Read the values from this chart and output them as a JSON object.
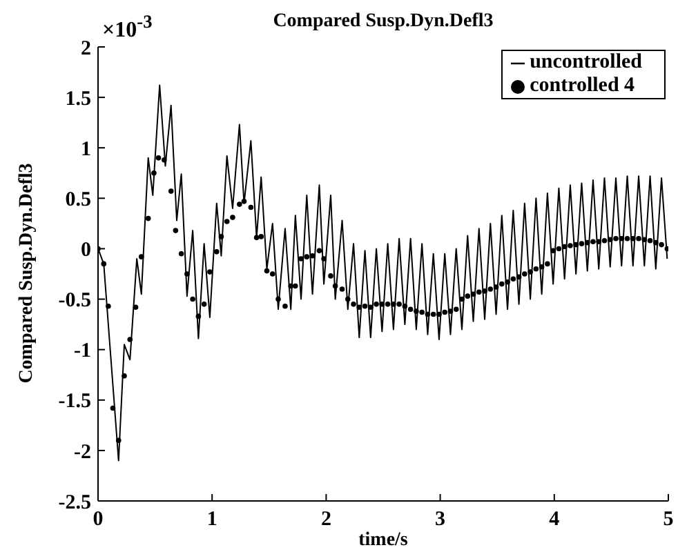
{
  "chart_data": {
    "type": "line",
    "title": "Compared Susp.Dyn.Defl3",
    "xlabel": "time/s",
    "ylabel": "Compared Susp.Dyn.Defl3",
    "annotations": [
      "×10$^{-3}$"
    ],
    "xlim": [
      0,
      5
    ],
    "xticks": [
      0,
      1,
      2,
      3,
      4,
      5
    ],
    "ylim": [
      -2.5,
      2
    ],
    "yticks": [
      -2.5,
      -2,
      -1.5,
      -1,
      -0.5,
      0,
      0.5,
      1,
      1.5,
      2
    ],
    "grid": false,
    "legend": "top right",
    "series": [
      {
        "name": "uncontrolled",
        "type": "line",
        "color": "#000000",
        "marker": "none",
        "line_style": "solid",
        "x": [
          0,
          0.05,
          0.18,
          0.23,
          0.28,
          0.34,
          0.38,
          0.44,
          0.48,
          0.54,
          0.59,
          0.64,
          0.69,
          0.73,
          0.78,
          0.83,
          0.88,
          0.93,
          0.98,
          1.04,
          1.08,
          1.13,
          1.18,
          1.24,
          1.28,
          1.34,
          1.39,
          1.43,
          1.48,
          1.53,
          1.58,
          1.64,
          1.69,
          1.73,
          1.78,
          1.83,
          1.88,
          1.94,
          1.98,
          2.04,
          2.08,
          2.14,
          2.19,
          2.24,
          2.29,
          2.34,
          2.39,
          2.44,
          2.49,
          2.54,
          2.59,
          2.64,
          2.69,
          2.74,
          2.79,
          2.84,
          2.89,
          2.94,
          2.99,
          3.04,
          3.09,
          3.14,
          3.19,
          3.24,
          3.29,
          3.34,
          3.39,
          3.44,
          3.49,
          3.54,
          3.59,
          3.64,
          3.69,
          3.74,
          3.79,
          3.84,
          3.89,
          3.94,
          3.99,
          4.04,
          4.09,
          4.14,
          4.19,
          4.24,
          4.29,
          4.34,
          4.39,
          4.44,
          4.49,
          4.54,
          4.59,
          4.64,
          4.69,
          4.74,
          4.79,
          4.84,
          4.89,
          4.94,
          4.99
        ],
        "values": [
          0,
          -0.15,
          -2.1,
          -0.95,
          -1.1,
          -0.1,
          -0.45,
          0.9,
          0.53,
          1.62,
          0.82,
          1.42,
          0.28,
          0.74,
          -0.47,
          0.18,
          -0.89,
          0.05,
          -0.68,
          0.45,
          -0.07,
          0.92,
          0.4,
          1.23,
          0.45,
          1.07,
          0.11,
          0.71,
          -0.2,
          0.25,
          -0.6,
          0.2,
          -0.6,
          0.33,
          -0.5,
          0.53,
          -0.45,
          0.63,
          -0.35,
          0.53,
          -0.5,
          0.28,
          -0.6,
          0.05,
          -0.88,
          -0.02,
          -0.88,
          0,
          -0.82,
          0.05,
          -0.8,
          0.1,
          -0.75,
          0.1,
          -0.8,
          0.05,
          -0.85,
          -0.05,
          -0.9,
          -0.05,
          -0.85,
          0,
          -0.8,
          0.13,
          -0.72,
          0.2,
          -0.7,
          0.25,
          -0.65,
          0.33,
          -0.6,
          0.38,
          -0.55,
          0.45,
          -0.5,
          0.5,
          -0.45,
          0.55,
          -0.35,
          0.6,
          -0.3,
          0.63,
          -0.25,
          0.65,
          -0.22,
          0.68,
          -0.2,
          0.7,
          -0.18,
          0.7,
          -0.17,
          0.72,
          -0.17,
          0.72,
          -0.17,
          0.72,
          -0.2,
          0.7,
          -0.1
        ]
      },
      {
        "name": "controlled 4",
        "type": "scatter",
        "color": "#000000",
        "marker": "circle",
        "x": [
          0,
          0.05,
          0.09,
          0.13,
          0.18,
          0.23,
          0.28,
          0.33,
          0.38,
          0.44,
          0.49,
          0.53,
          0.58,
          0.64,
          0.68,
          0.73,
          0.78,
          0.83,
          0.88,
          0.93,
          0.98,
          1.04,
          1.08,
          1.13,
          1.18,
          1.24,
          1.28,
          1.34,
          1.39,
          1.43,
          1.48,
          1.53,
          1.58,
          1.64,
          1.69,
          1.73,
          1.78,
          1.83,
          1.88,
          1.94,
          1.98,
          2.04,
          2.08,
          2.14,
          2.19,
          2.24,
          2.29,
          2.34,
          2.39,
          2.44,
          2.49,
          2.54,
          2.59,
          2.64,
          2.69,
          2.74,
          2.79,
          2.84,
          2.89,
          2.94,
          2.99,
          3.04,
          3.09,
          3.14,
          3.19,
          3.24,
          3.29,
          3.34,
          3.39,
          3.44,
          3.49,
          3.54,
          3.59,
          3.64,
          3.69,
          3.74,
          3.79,
          3.84,
          3.89,
          3.94,
          3.99,
          4.04,
          4.09,
          4.14,
          4.19,
          4.24,
          4.29,
          4.34,
          4.39,
          4.44,
          4.49,
          4.54,
          4.59,
          4.64,
          4.69,
          4.74,
          4.79,
          4.84,
          4.89,
          4.94,
          4.99
        ],
        "values": [
          0,
          -0.15,
          -0.57,
          -1.58,
          -1.9,
          -1.26,
          -0.9,
          -0.58,
          -0.08,
          0.3,
          0.75,
          0.9,
          0.88,
          0.57,
          0.18,
          -0.05,
          -0.25,
          -0.5,
          -0.67,
          -0.55,
          -0.23,
          -0.03,
          0.12,
          0.27,
          0.31,
          0.44,
          0.47,
          0.41,
          0.11,
          0.12,
          -0.22,
          -0.25,
          -0.5,
          -0.57,
          -0.37,
          -0.37,
          -0.1,
          -0.08,
          -0.07,
          -0.02,
          -0.1,
          -0.27,
          -0.37,
          -0.4,
          -0.5,
          -0.55,
          -0.58,
          -0.57,
          -0.58,
          -0.55,
          -0.55,
          -0.55,
          -0.55,
          -0.55,
          -0.57,
          -0.6,
          -0.62,
          -0.63,
          -0.65,
          -0.65,
          -0.65,
          -0.63,
          -0.62,
          -0.6,
          -0.5,
          -0.47,
          -0.45,
          -0.43,
          -0.42,
          -0.4,
          -0.38,
          -0.35,
          -0.33,
          -0.3,
          -0.28,
          -0.25,
          -0.23,
          -0.2,
          -0.18,
          -0.15,
          -0.02,
          0,
          0.02,
          0.03,
          0.04,
          0.05,
          0.06,
          0.07,
          0.07,
          0.08,
          0.09,
          0.1,
          0.1,
          0.1,
          0.1,
          0.1,
          0.09,
          0.08,
          0.06,
          0.04,
          0
        ]
      }
    ]
  }
}
